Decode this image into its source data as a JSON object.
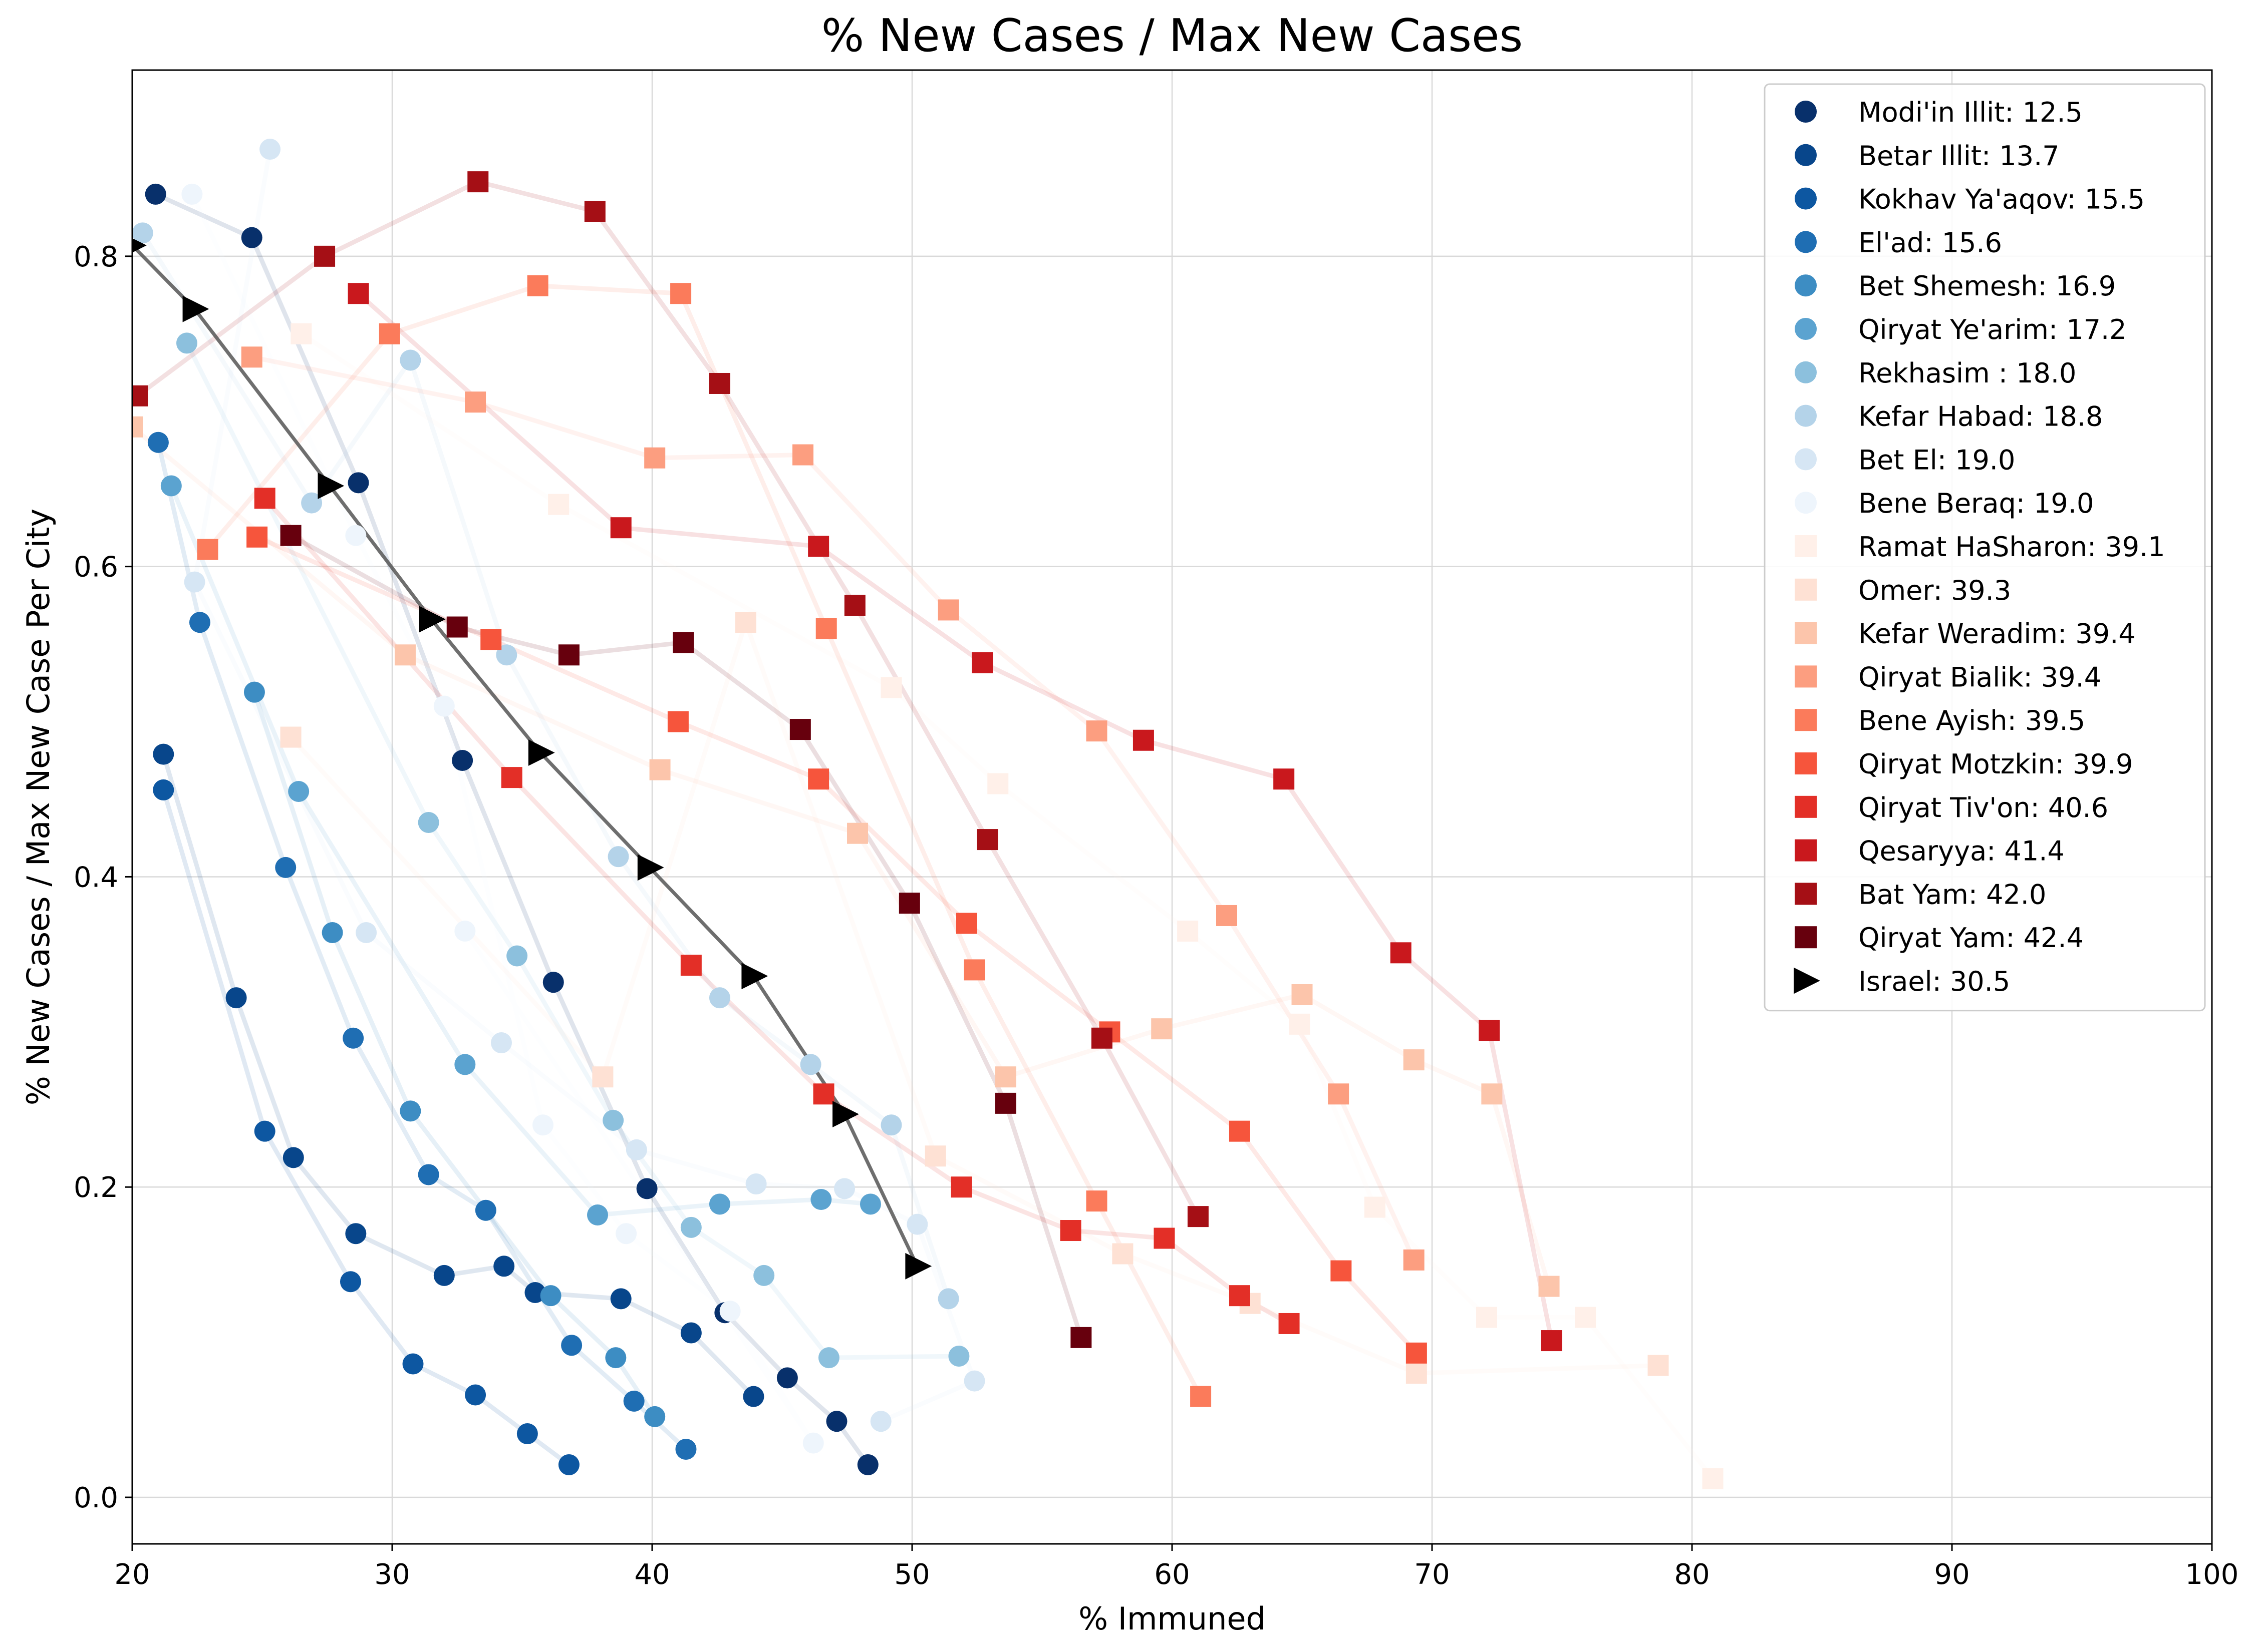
{
  "chart_data": {
    "type": "scatter",
    "title": "% New Cases / Max New Cases",
    "xlabel": "% Immuned",
    "ylabel": "% New Cases / Max New Case Per City",
    "xlim": [
      20,
      100
    ],
    "ylim": [
      -0.03,
      0.92
    ],
    "xticks": [
      20,
      30,
      40,
      50,
      60,
      70,
      80,
      90,
      100
    ],
    "yticks": [
      0.0,
      0.2,
      0.4,
      0.6,
      0.8
    ],
    "grid": true,
    "legend_position": "top-right",
    "series": [
      {
        "name": "Modi'in Illit: 12.5",
        "marker": "circle",
        "color": "#08306b",
        "points": [
          [
            20.9,
            0.84
          ],
          [
            24.6,
            0.812
          ],
          [
            28.7,
            0.654
          ],
          [
            32.7,
            0.475
          ],
          [
            36.2,
            0.332
          ],
          [
            39.8,
            0.199
          ],
          [
            42.8,
            0.119
          ],
          [
            45.2,
            0.077
          ],
          [
            47.1,
            0.049
          ],
          [
            48.3,
            0.021
          ]
        ]
      },
      {
        "name": "Betar Illit: 13.7",
        "marker": "circle",
        "color": "#08468b",
        "points": [
          [
            21.2,
            0.479
          ],
          [
            24.0,
            0.322
          ],
          [
            26.2,
            0.219
          ],
          [
            28.6,
            0.17
          ],
          [
            32.0,
            0.143
          ],
          [
            34.3,
            0.149
          ],
          [
            35.5,
            0.132
          ],
          [
            38.8,
            0.128
          ],
          [
            41.5,
            0.106
          ],
          [
            43.9,
            0.065
          ]
        ]
      },
      {
        "name": "Kokhav Ya'aqov: 15.5",
        "marker": "circle",
        "color": "#0d57a1",
        "points": [
          [
            21.2,
            0.456
          ],
          [
            25.1,
            0.236
          ],
          [
            28.4,
            0.139
          ],
          [
            30.8,
            0.086
          ],
          [
            33.2,
            0.066
          ],
          [
            35.2,
            0.041
          ],
          [
            36.8,
            0.021
          ]
        ]
      },
      {
        "name": "El'ad: 15.6",
        "marker": "circle",
        "color": "#1f6eb3",
        "points": [
          [
            21.0,
            0.68
          ],
          [
            22.6,
            0.564
          ],
          [
            25.9,
            0.406
          ],
          [
            28.5,
            0.296
          ],
          [
            31.4,
            0.208
          ],
          [
            33.6,
            0.185
          ],
          [
            36.9,
            0.098
          ],
          [
            39.3,
            0.062
          ],
          [
            41.3,
            0.031
          ]
        ]
      },
      {
        "name": "Bet Shemesh: 16.9",
        "marker": "circle",
        "color": "#3d8dc3",
        "points": [
          [
            24.7,
            0.519
          ],
          [
            27.7,
            0.364
          ],
          [
            30.7,
            0.249
          ],
          [
            36.1,
            0.13
          ],
          [
            38.6,
            0.09
          ],
          [
            40.1,
            0.052
          ]
        ]
      },
      {
        "name": "Qiryat Ye'arim: 17.2",
        "marker": "circle",
        "color": "#5ba3d0",
        "points": [
          [
            21.5,
            0.652
          ],
          [
            26.4,
            0.455
          ],
          [
            32.8,
            0.279
          ],
          [
            37.9,
            0.182
          ],
          [
            42.6,
            0.189
          ],
          [
            46.5,
            0.192
          ],
          [
            48.4,
            0.189
          ]
        ]
      },
      {
        "name": "Rekhasim : 18.0",
        "marker": "circle",
        "color": "#8cc0dd",
        "points": [
          [
            22.1,
            0.744
          ],
          [
            31.4,
            0.435
          ],
          [
            34.8,
            0.349
          ],
          [
            38.5,
            0.243
          ],
          [
            41.5,
            0.174
          ],
          [
            44.3,
            0.143
          ],
          [
            46.8,
            0.09
          ],
          [
            51.8,
            0.091
          ]
        ]
      },
      {
        "name": "Kefar Habad: 18.8",
        "marker": "circle",
        "color": "#b4d3e9",
        "points": [
          [
            20.4,
            0.815
          ],
          [
            26.9,
            0.641
          ],
          [
            30.7,
            0.733
          ],
          [
            34.4,
            0.543
          ],
          [
            38.7,
            0.413
          ],
          [
            42.6,
            0.322
          ],
          [
            46.1,
            0.279
          ],
          [
            49.2,
            0.24
          ],
          [
            51.4,
            0.128
          ]
        ]
      },
      {
        "name": "Bet El: 19.0",
        "marker": "circle",
        "color": "#d6e6f4",
        "points": [
          [
            25.3,
            0.869
          ],
          [
            22.4,
            0.59
          ],
          [
            29.0,
            0.364
          ],
          [
            34.2,
            0.293
          ],
          [
            39.4,
            0.224
          ],
          [
            44.0,
            0.202
          ],
          [
            47.4,
            0.199
          ],
          [
            50.2,
            0.176
          ],
          [
            52.4,
            0.075
          ],
          [
            48.8,
            0.049
          ]
        ]
      },
      {
        "name": "Bene Beraq: 19.0",
        "marker": "circle",
        "color": "#eef5fc",
        "points": [
          [
            22.3,
            0.84
          ],
          [
            28.6,
            0.62
          ],
          [
            32.0,
            0.51
          ],
          [
            35.8,
            0.24
          ],
          [
            39.0,
            0.17
          ],
          [
            43.0,
            0.12
          ],
          [
            46.2,
            0.035
          ],
          [
            32.8,
            0.365
          ]
        ]
      },
      {
        "name": "Ramat HaSharon: 39.1",
        "marker": "square",
        "color": "#fff0e9",
        "points": [
          [
            26.5,
            0.75
          ],
          [
            36.4,
            0.64
          ],
          [
            49.2,
            0.522
          ],
          [
            53.3,
            0.46
          ],
          [
            60.6,
            0.365
          ],
          [
            64.9,
            0.305
          ],
          [
            67.8,
            0.187
          ],
          [
            72.1,
            0.116
          ],
          [
            75.9,
            0.116
          ],
          [
            80.8,
            0.012
          ]
        ]
      },
      {
        "name": "Omer: 39.3",
        "marker": "square",
        "color": "#fee1d4",
        "points": [
          [
            26.1,
            0.49
          ],
          [
            38.1,
            0.271
          ],
          [
            43.6,
            0.564
          ],
          [
            50.9,
            0.22
          ],
          [
            58.1,
            0.157
          ],
          [
            63.0,
            0.125
          ],
          [
            69.4,
            0.08
          ],
          [
            78.7,
            0.085
          ]
        ]
      },
      {
        "name": "Kefar Weradim: 39.4",
        "marker": "square",
        "color": "#fcc5ab",
        "points": [
          [
            20.0,
            0.69
          ],
          [
            30.5,
            0.543
          ],
          [
            40.3,
            0.469
          ],
          [
            47.9,
            0.428
          ],
          [
            53.6,
            0.271
          ],
          [
            59.6,
            0.302
          ],
          [
            65.0,
            0.324
          ],
          [
            69.3,
            0.282
          ],
          [
            72.3,
            0.26
          ],
          [
            74.5,
            0.136
          ]
        ]
      },
      {
        "name": "Qiryat Bialik: 39.4",
        "marker": "square",
        "color": "#fc9e80",
        "points": [
          [
            24.6,
            0.735
          ],
          [
            33.2,
            0.706
          ],
          [
            40.1,
            0.67
          ],
          [
            45.8,
            0.672
          ],
          [
            51.4,
            0.572
          ],
          [
            57.1,
            0.494
          ],
          [
            62.1,
            0.375
          ],
          [
            66.4,
            0.26
          ],
          [
            69.3,
            0.153
          ]
        ]
      },
      {
        "name": "Bene Ayish: 39.5",
        "marker": "square",
        "color": "#fb7b5b",
        "points": [
          [
            22.9,
            0.611
          ],
          [
            29.9,
            0.75
          ],
          [
            35.6,
            0.781
          ],
          [
            41.1,
            0.776
          ],
          [
            46.7,
            0.56
          ],
          [
            52.4,
            0.34
          ],
          [
            57.1,
            0.191
          ],
          [
            61.1,
            0.065
          ]
        ]
      },
      {
        "name": "Qiryat Motzkin: 39.9",
        "marker": "square",
        "color": "#f6553c",
        "points": [
          [
            24.8,
            0.619
          ],
          [
            33.8,
            0.553
          ],
          [
            41.0,
            0.5
          ],
          [
            46.4,
            0.463
          ],
          [
            52.1,
            0.37
          ],
          [
            57.6,
            0.3
          ],
          [
            62.6,
            0.236
          ],
          [
            66.5,
            0.146
          ],
          [
            69.4,
            0.093
          ]
        ]
      },
      {
        "name": "Qiryat Tiv'on: 40.6",
        "marker": "square",
        "color": "#e32f27",
        "points": [
          [
            25.1,
            0.644
          ],
          [
            34.6,
            0.464
          ],
          [
            41.5,
            0.343
          ],
          [
            46.6,
            0.26
          ],
          [
            51.9,
            0.2
          ],
          [
            56.1,
            0.172
          ],
          [
            59.7,
            0.167
          ],
          [
            62.6,
            0.13
          ],
          [
            64.5,
            0.112
          ]
        ]
      },
      {
        "name": "Qesaryya: 41.4",
        "marker": "square",
        "color": "#c9181d",
        "points": [
          [
            28.7,
            0.776
          ],
          [
            38.8,
            0.625
          ],
          [
            46.4,
            0.613
          ],
          [
            52.7,
            0.538
          ],
          [
            58.9,
            0.488
          ],
          [
            64.3,
            0.463
          ],
          [
            68.8,
            0.351
          ],
          [
            72.2,
            0.301
          ],
          [
            74.6,
            0.101
          ]
        ]
      },
      {
        "name": "Bat Yam: 42.0",
        "marker": "square",
        "color": "#a50f15",
        "points": [
          [
            20.2,
            0.71
          ],
          [
            27.4,
            0.8
          ],
          [
            33.3,
            0.848
          ],
          [
            37.8,
            0.829
          ],
          [
            42.6,
            0.718
          ],
          [
            47.8,
            0.575
          ],
          [
            52.9,
            0.424
          ],
          [
            57.3,
            0.296
          ],
          [
            61.0,
            0.181
          ]
        ]
      },
      {
        "name": "Qiryat Yam: 42.4",
        "marker": "square",
        "color": "#67000d",
        "points": [
          [
            26.1,
            0.62
          ],
          [
            32.5,
            0.561
          ],
          [
            36.8,
            0.543
          ],
          [
            41.2,
            0.551
          ],
          [
            45.7,
            0.495
          ],
          [
            49.9,
            0.383
          ],
          [
            53.6,
            0.254
          ],
          [
            56.5,
            0.103
          ]
        ]
      },
      {
        "name": "Israel: 30.5",
        "marker": "triangle",
        "color": "#000000",
        "points": [
          [
            20.0,
            0.807
          ],
          [
            22.4,
            0.766
          ],
          [
            27.6,
            0.652
          ],
          [
            31.5,
            0.566
          ],
          [
            35.7,
            0.48
          ],
          [
            39.9,
            0.406
          ],
          [
            43.9,
            0.336
          ],
          [
            47.4,
            0.247
          ],
          [
            50.2,
            0.149
          ]
        ]
      }
    ]
  }
}
